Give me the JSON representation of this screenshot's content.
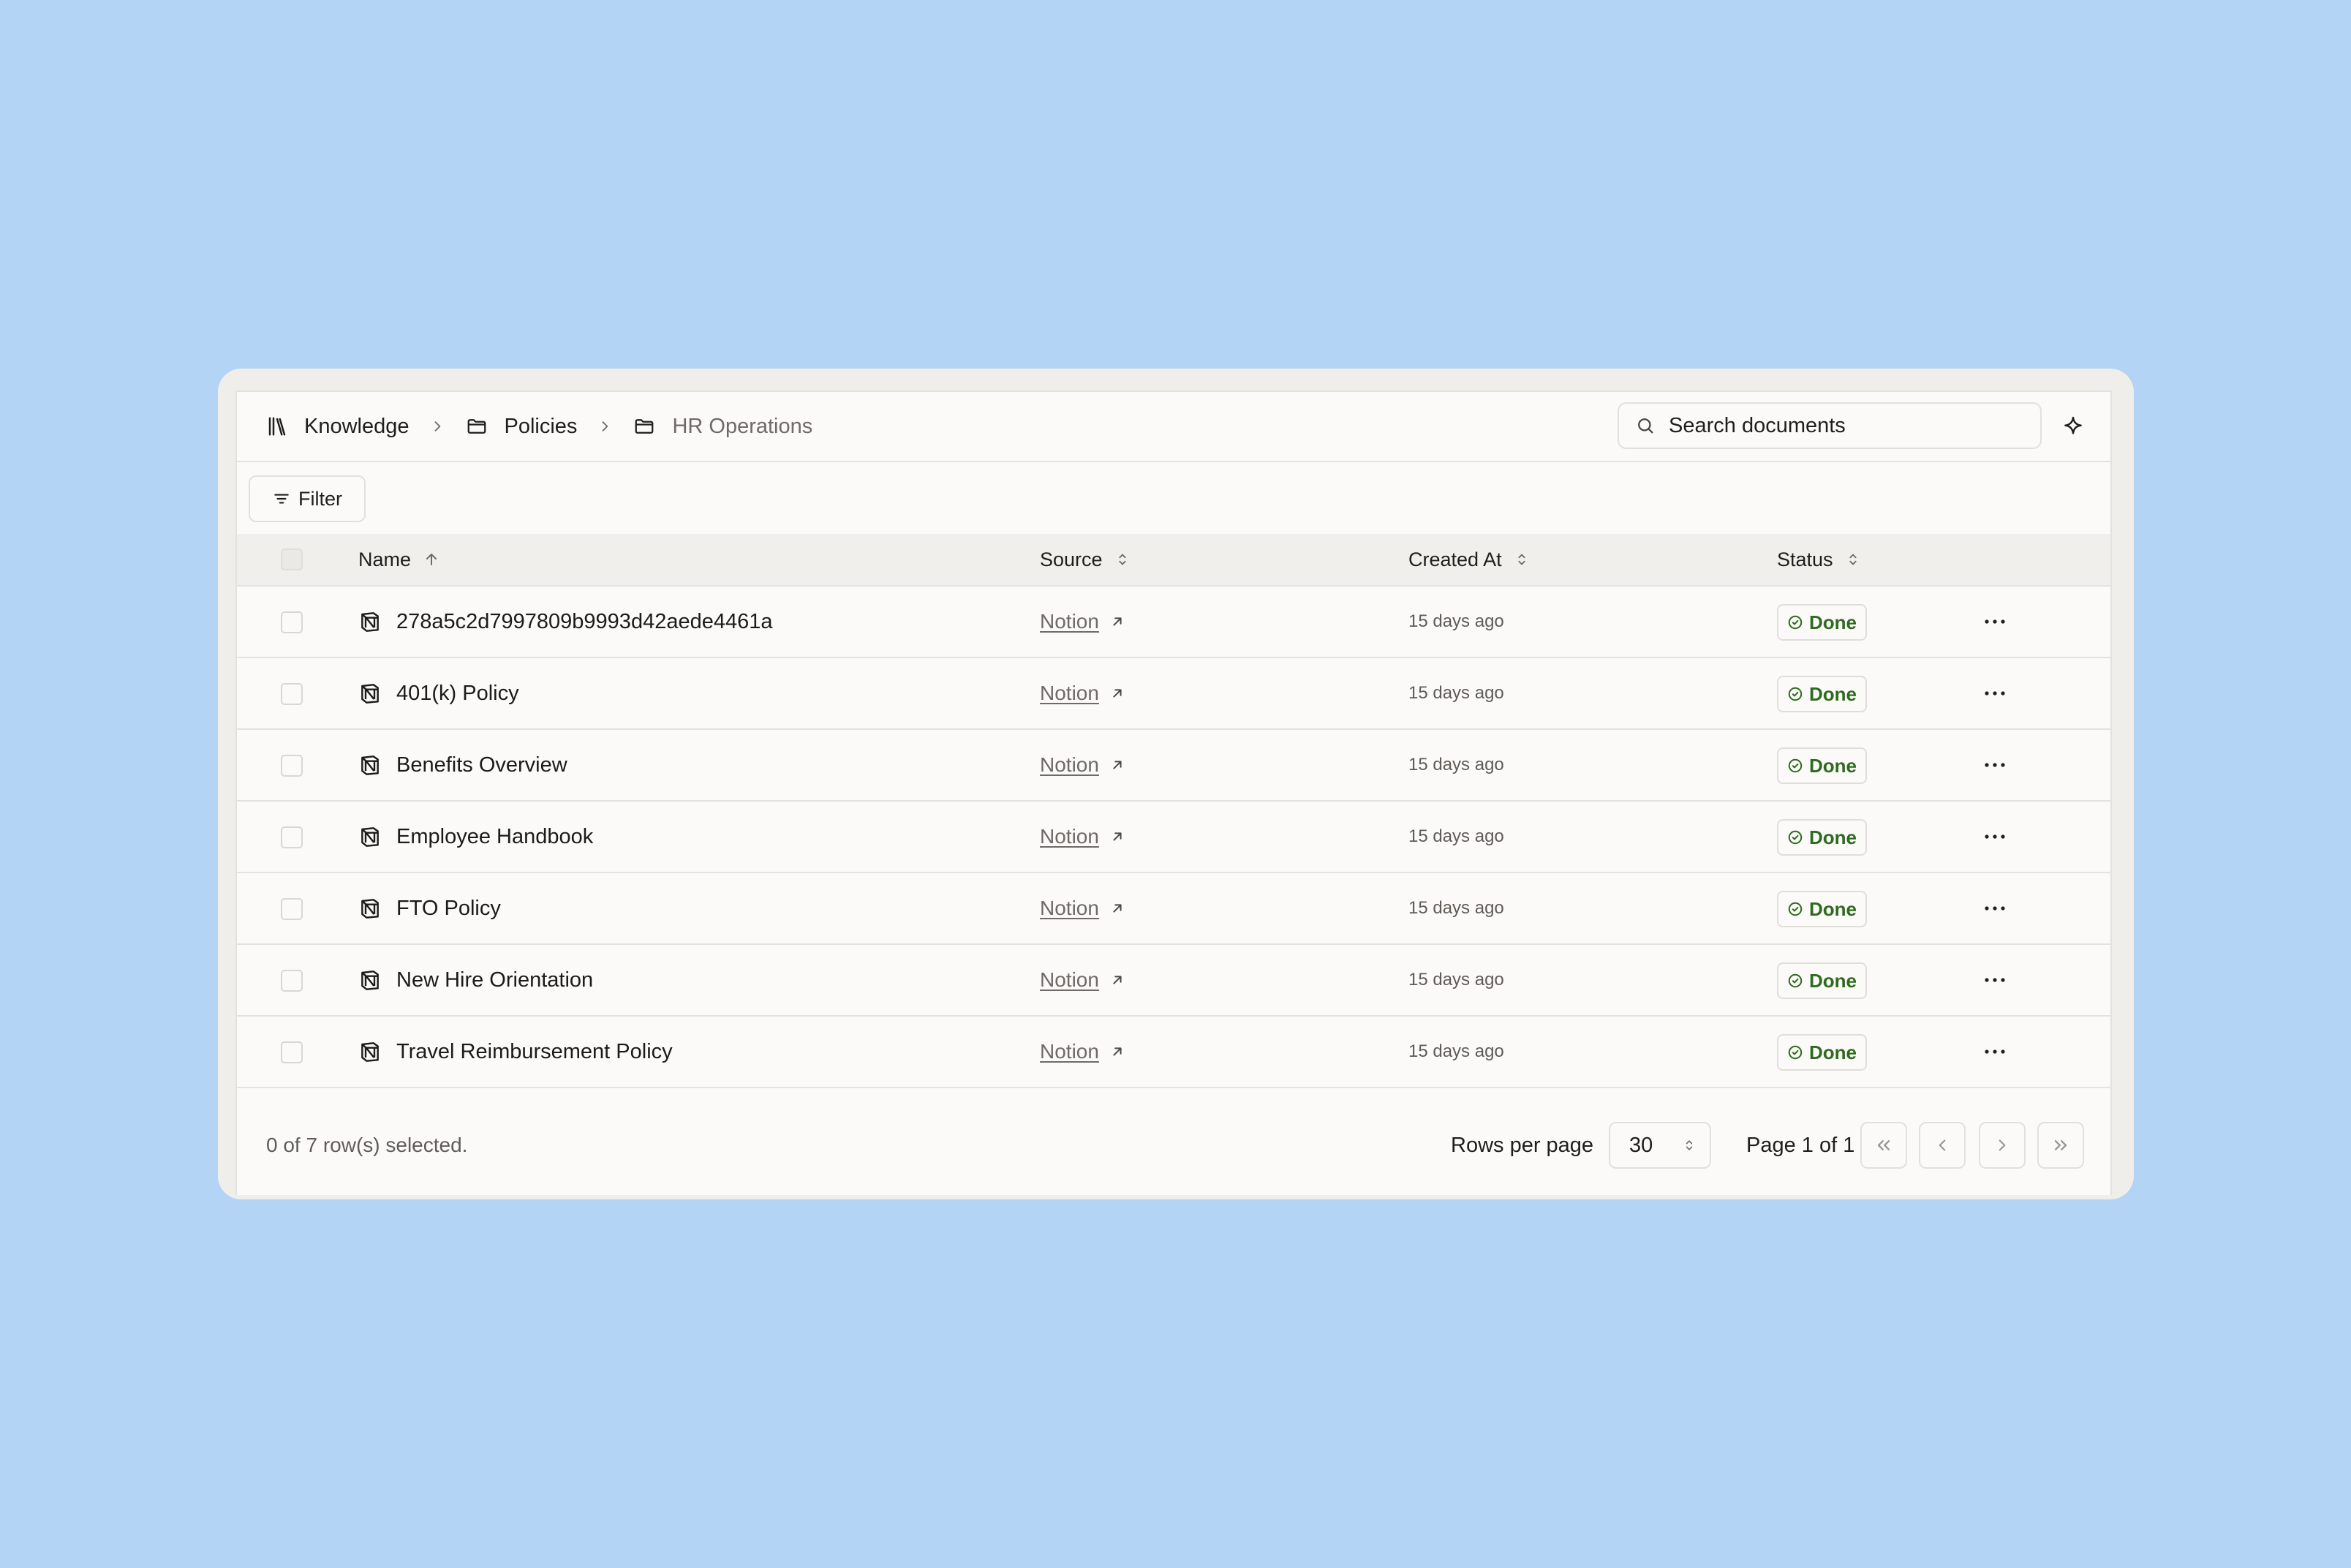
{
  "breadcrumb": [
    {
      "label": "Knowledge",
      "icon": "library-icon"
    },
    {
      "label": "Policies",
      "icon": "folder-icon"
    },
    {
      "label": "HR Operations",
      "icon": "folder-icon"
    }
  ],
  "search": {
    "placeholder": "Search documents"
  },
  "toolbar": {
    "filter_label": "Filter"
  },
  "table": {
    "columns": {
      "name": "Name",
      "source": "Source",
      "created_at": "Created At",
      "status": "Status"
    },
    "rows": [
      {
        "name": "278a5c2d7997809b9993d42aede4461a",
        "source": "Notion",
        "created_at": "15 days ago",
        "status": "Done"
      },
      {
        "name": "401(k) Policy",
        "source": "Notion",
        "created_at": "15 days ago",
        "status": "Done"
      },
      {
        "name": "Benefits Overview",
        "source": "Notion",
        "created_at": "15 days ago",
        "status": "Done"
      },
      {
        "name": "Employee Handbook",
        "source": "Notion",
        "created_at": "15 days ago",
        "status": "Done"
      },
      {
        "name": "FTO Policy",
        "source": "Notion",
        "created_at": "15 days ago",
        "status": "Done"
      },
      {
        "name": "New Hire Orientation",
        "source": "Notion",
        "created_at": "15 days ago",
        "status": "Done"
      },
      {
        "name": "Travel Reimbursement Policy",
        "source": "Notion",
        "created_at": "15 days ago",
        "status": "Done"
      }
    ]
  },
  "footer": {
    "selection_text": "0 of 7 row(s) selected.",
    "rows_per_page_label": "Rows per page",
    "rows_per_page_value": "30",
    "page_info": "Page 1 of 1"
  },
  "colors": {
    "background": "#b3d4f4",
    "status_done": "#2f6b1f",
    "card": "#fbfaf8"
  }
}
